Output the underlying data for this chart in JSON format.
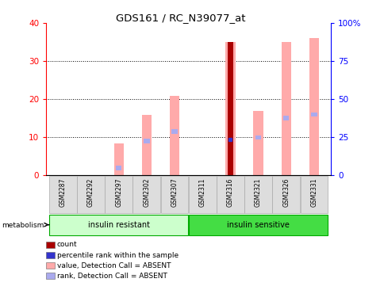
{
  "title": "GDS161 / RC_N39077_at",
  "samples": [
    "GSM2287",
    "GSM2292",
    "GSM2297",
    "GSM2302",
    "GSM2307",
    "GSM2311",
    "GSM2316",
    "GSM2321",
    "GSM2326",
    "GSM2331"
  ],
  "value_absent": [
    0,
    0,
    8.5,
    16,
    21,
    0,
    35,
    17,
    35,
    36
  ],
  "rank_absent": [
    0,
    0,
    2,
    9,
    11.5,
    0,
    0,
    10,
    15,
    16
  ],
  "count": [
    0,
    0,
    0,
    0,
    0,
    0,
    35,
    0,
    0,
    0
  ],
  "percentile_rank": [
    0,
    0,
    0,
    0,
    0,
    0,
    9.5,
    0,
    0,
    0
  ],
  "ylim_left": [
    0,
    40
  ],
  "ylim_right": [
    0,
    100
  ],
  "yticks_left": [
    0,
    10,
    20,
    30,
    40
  ],
  "yticks_right": [
    0,
    25,
    50,
    75,
    100
  ],
  "yticklabels_right": [
    "0",
    "25",
    "50",
    "75",
    "100%"
  ],
  "color_count": "#aa0000",
  "color_percentile": "#3333cc",
  "color_value_absent": "#ffaaaa",
  "color_rank_absent": "#aaaaee",
  "group_color_resistant": "#ccffcc",
  "group_color_sensitive": "#44dd44",
  "group_border_color": "#00aa00",
  "sample_box_color": "#dddddd",
  "legend_items": [
    {
      "label": "count",
      "color": "#aa0000"
    },
    {
      "label": "percentile rank within the sample",
      "color": "#3333cc"
    },
    {
      "label": "value, Detection Call = ABSENT",
      "color": "#ffaaaa"
    },
    {
      "label": "rank, Detection Call = ABSENT",
      "color": "#aaaaee"
    }
  ],
  "bar_width": 0.35
}
